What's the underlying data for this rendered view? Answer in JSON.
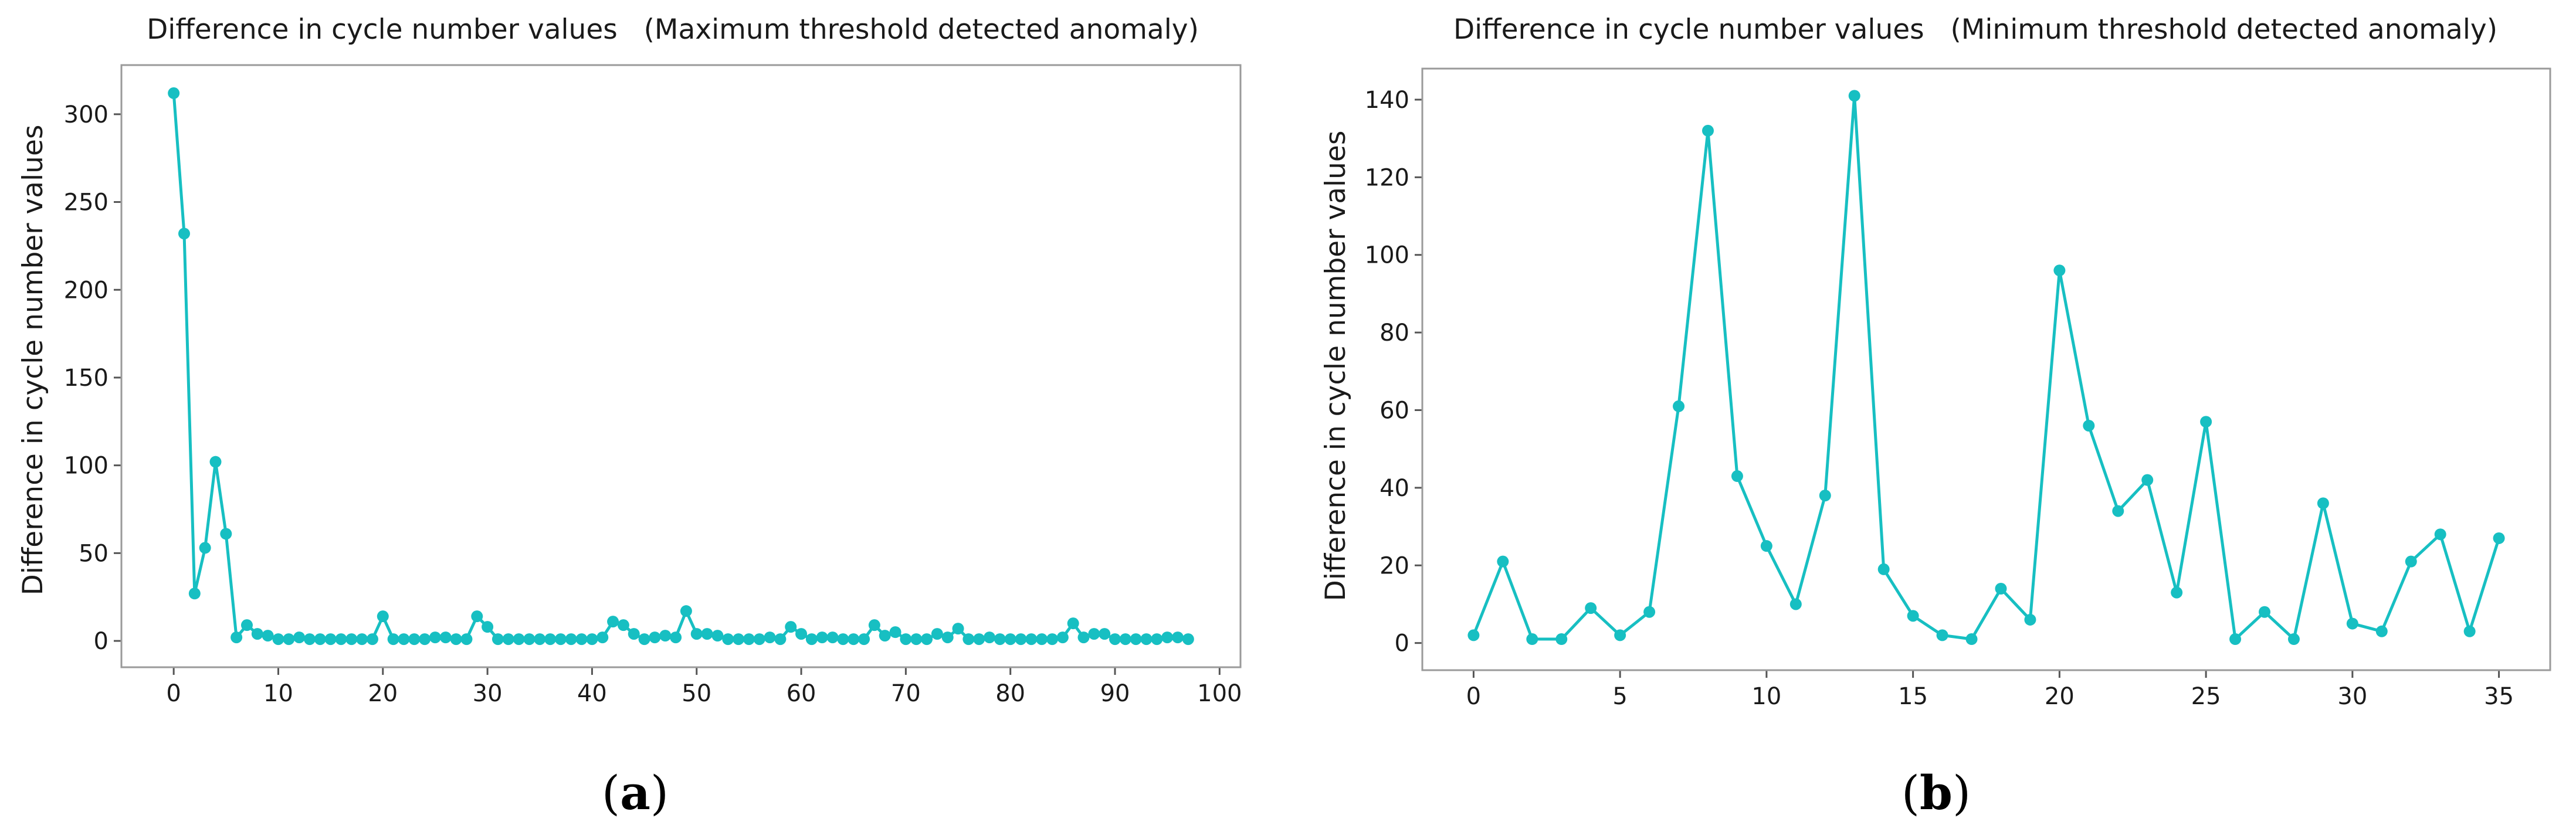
{
  "colors": {
    "series": "#17BFC2"
  },
  "chart_data": [
    {
      "id": "a",
      "type": "line",
      "panel_label": {
        "left": "(",
        "letter": "a",
        "right": ")"
      },
      "title": "Difference in cycle number values   (Maximum threshold detected anomaly)",
      "xlabel": "",
      "ylabel": "Difference in cycle number values",
      "xlim": [
        -5,
        102
      ],
      "ylim": [
        -15,
        328
      ],
      "xticks": [
        0,
        10,
        20,
        30,
        40,
        50,
        60,
        70,
        80,
        90,
        100
      ],
      "yticks": [
        0,
        50,
        100,
        150,
        200,
        250,
        300
      ],
      "x": [
        0,
        1,
        2,
        3,
        4,
        5,
        6,
        7,
        8,
        9,
        10,
        11,
        12,
        13,
        14,
        15,
        16,
        17,
        18,
        19,
        20,
        21,
        22,
        23,
        24,
        25,
        26,
        27,
        28,
        29,
        30,
        31,
        32,
        33,
        34,
        35,
        36,
        37,
        38,
        39,
        40,
        41,
        42,
        43,
        44,
        45,
        46,
        47,
        48,
        49,
        50,
        51,
        52,
        53,
        54,
        55,
        56,
        57,
        58,
        59,
        60,
        61,
        62,
        63,
        64,
        65,
        66,
        67,
        68,
        69,
        70,
        71,
        72,
        73,
        74,
        75,
        76,
        77,
        78,
        79,
        80,
        81,
        82,
        83,
        84,
        85,
        86,
        87,
        88,
        89,
        90,
        91,
        92,
        93,
        94,
        95,
        96,
        97
      ],
      "y": [
        312,
        232,
        27,
        53,
        102,
        61,
        2,
        9,
        4,
        3,
        1,
        1,
        2,
        1,
        1,
        1,
        1,
        1,
        1,
        1,
        14,
        1,
        1,
        1,
        1,
        2,
        2,
        1,
        1,
        14,
        8,
        1,
        1,
        1,
        1,
        1,
        1,
        1,
        1,
        1,
        1,
        2,
        11,
        9,
        4,
        1,
        2,
        3,
        2,
        17,
        4,
        4,
        3,
        1,
        1,
        1,
        1,
        2,
        1,
        8,
        4,
        1,
        2,
        2,
        1,
        1,
        1,
        9,
        3,
        5,
        1,
        1,
        1,
        4,
        2,
        7,
        1,
        1,
        2,
        1,
        1,
        1,
        1,
        1,
        1,
        2,
        10,
        2,
        4,
        4,
        1,
        1,
        1,
        1,
        1,
        2,
        2,
        1
      ]
    },
    {
      "id": "b",
      "type": "line",
      "panel_label": {
        "left": "(",
        "letter": "b",
        "right": ")"
      },
      "title": "Difference in cycle number values   (Minimum threshold detected anomaly)",
      "xlabel": "",
      "ylabel": "Difference in cycle number values",
      "xlim": [
        -1.75,
        36.75
      ],
      "ylim": [
        -7,
        148
      ],
      "xticks": [
        0,
        5,
        10,
        15,
        20,
        25,
        30,
        35
      ],
      "yticks": [
        0,
        20,
        40,
        60,
        80,
        100,
        120,
        140
      ],
      "x": [
        0,
        1,
        2,
        3,
        4,
        5,
        6,
        7,
        8,
        9,
        10,
        11,
        12,
        13,
        14,
        15,
        16,
        17,
        18,
        19,
        20,
        21,
        22,
        23,
        24,
        25,
        26,
        27,
        28,
        29,
        30,
        31,
        32,
        33,
        34,
        35
      ],
      "y": [
        2,
        21,
        1,
        1,
        9,
        2,
        8,
        61,
        132,
        43,
        25,
        10,
        38,
        141,
        19,
        7,
        2,
        1,
        14,
        6,
        96,
        56,
        34,
        42,
        13,
        57,
        1,
        8,
        1,
        36,
        5,
        3,
        21,
        28,
        3,
        27
      ]
    }
  ]
}
